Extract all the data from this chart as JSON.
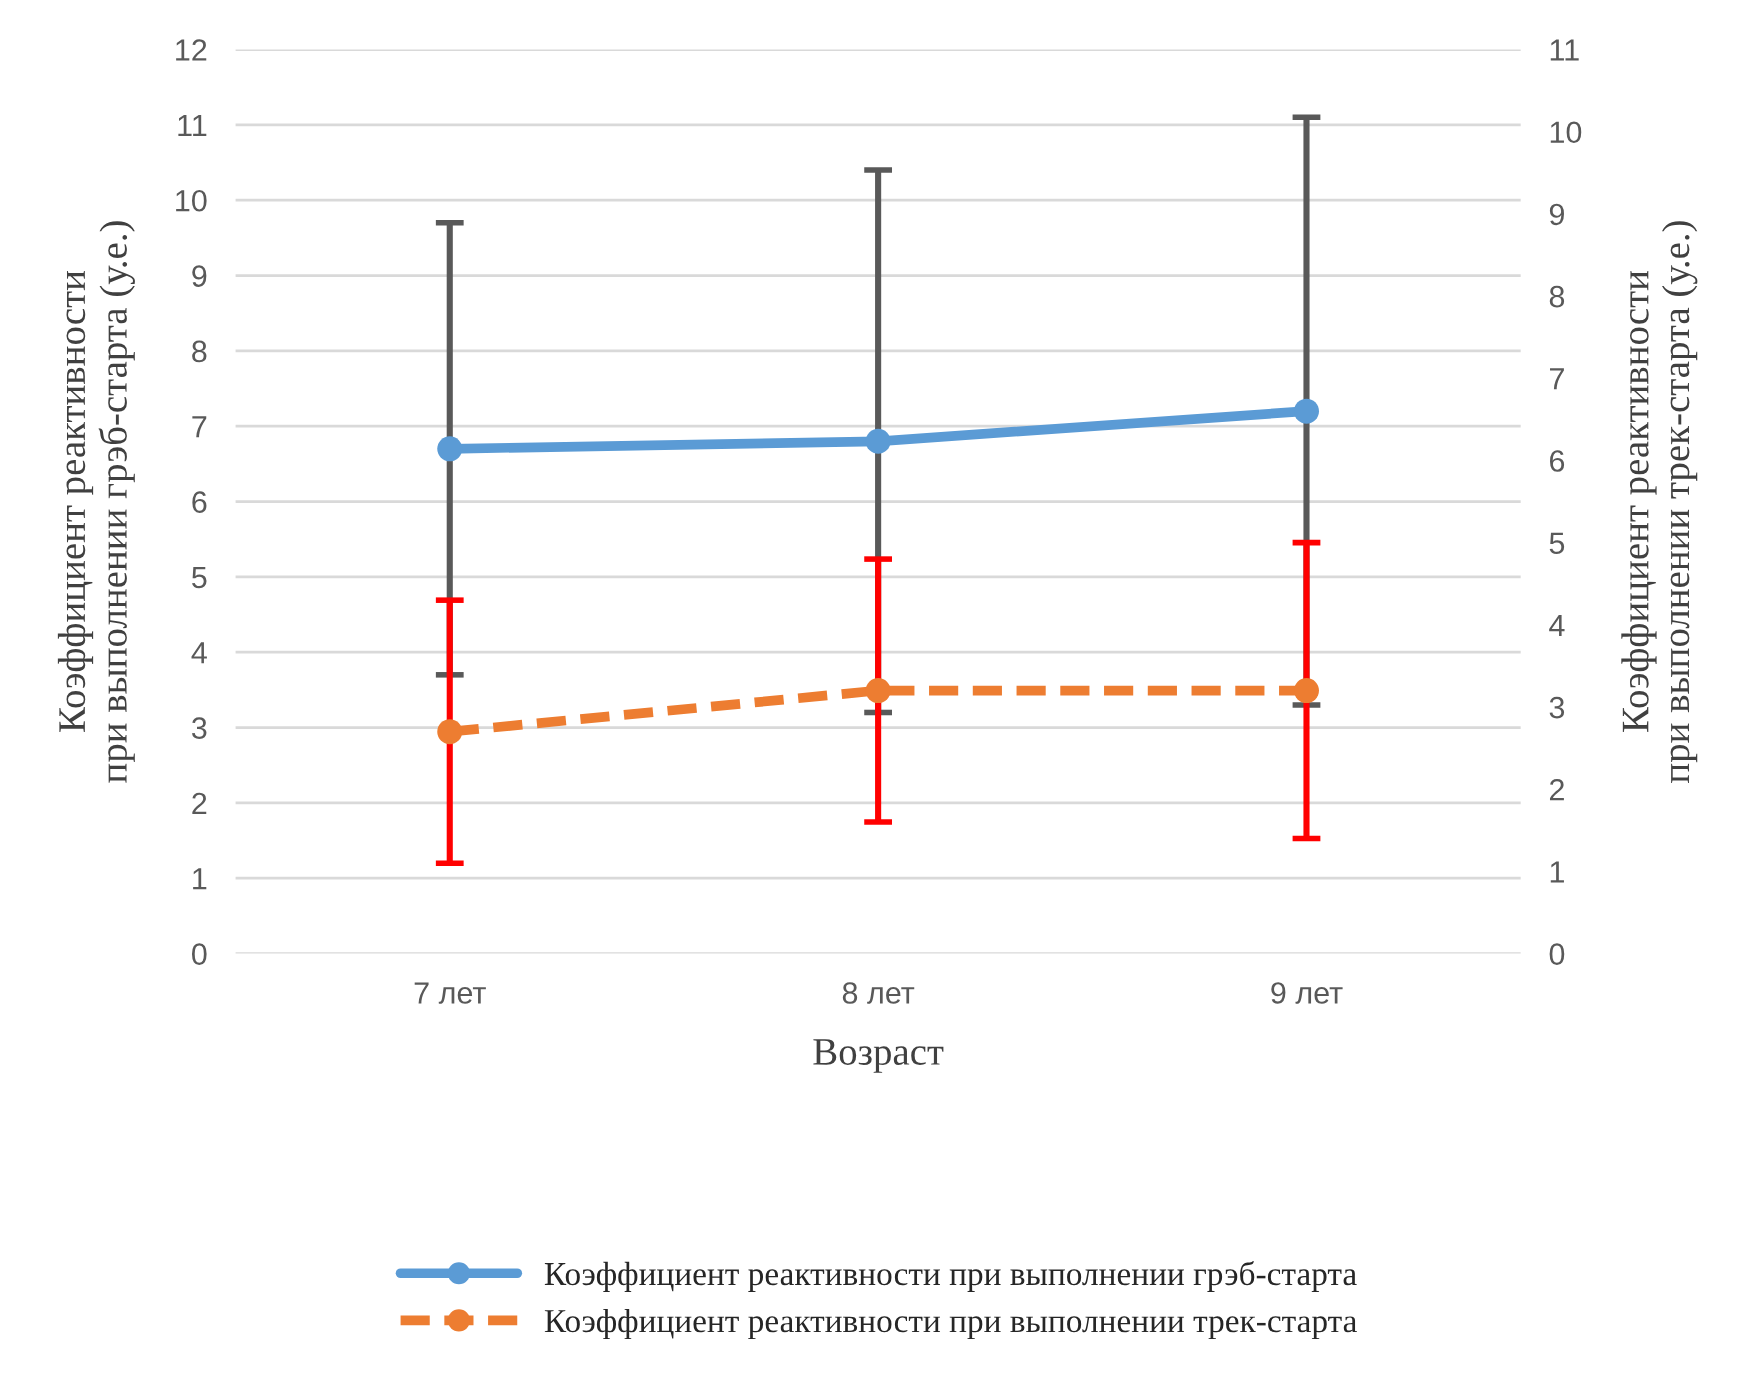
{
  "chart_data": {
    "type": "line",
    "categories": [
      "7 лет",
      "8 лет",
      "9 лет"
    ],
    "xlabel": "Возраст",
    "ylabel": "Коэффициент реактивности\nпри выполнении грэб-старта (у.е.)",
    "y2label": "Коэффициент реактивности\nпри выполнении трек-старта (у.е.)",
    "ylim": [
      0,
      12
    ],
    "yticks": [
      0,
      1,
      2,
      3,
      4,
      5,
      6,
      7,
      8,
      9,
      10,
      11,
      12
    ],
    "y2lim": [
      0,
      11
    ],
    "y2ticks": [
      0,
      1,
      2,
      3,
      4,
      5,
      6,
      7,
      8,
      9,
      10,
      11
    ],
    "grid": "y",
    "legend": "bottom",
    "marker": "circle",
    "series": [
      {
        "name": "Коэффициент реактивности при выполнении грэб-старта",
        "color": "#5b9bd5",
        "line_style": "solid",
        "values": [
          6.7,
          6.8,
          7.2
        ],
        "errors": [
          3.0,
          3.6,
          3.9
        ]
      },
      {
        "name": "Коэффициент реактивности при выполнении трек-старта",
        "color": "#ed7d31",
        "line_style": "dashed",
        "axis": "y2",
        "values": [
          2.7,
          3.2,
          3.2
        ],
        "errors": [
          1.6,
          1.6,
          1.8
        ]
      }
    ]
  }
}
